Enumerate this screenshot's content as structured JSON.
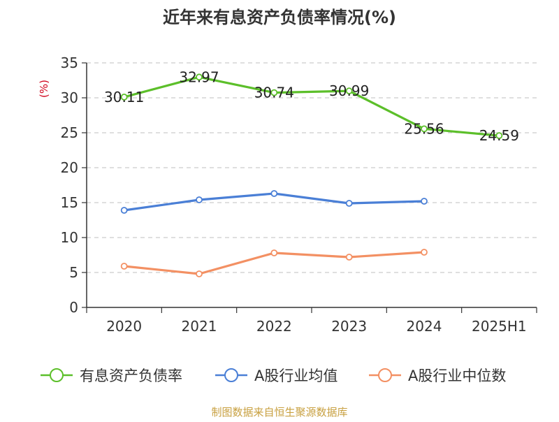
{
  "chart_data": {
    "type": "line",
    "title": "近年来有息资产负债率情况(%)",
    "ylabel": "(%)",
    "xlabel": "",
    "ylim": [
      0,
      35
    ],
    "yticks": [
      0,
      5,
      10,
      15,
      20,
      25,
      30,
      35
    ],
    "categories": [
      "2020",
      "2021",
      "2022",
      "2023",
      "2024",
      "2025H1"
    ],
    "grid": true,
    "legend_position": "bottom",
    "series": [
      {
        "name": "有息资产负债率",
        "color": "#5cbf2a",
        "values": [
          30.11,
          32.97,
          30.74,
          30.99,
          25.56,
          24.59
        ],
        "labels": [
          "30.11",
          "32.97",
          "30.74",
          "30.99",
          "25.56",
          "24.59"
        ]
      },
      {
        "name": "A股行业均值",
        "color": "#4a7fd6",
        "values": [
          13.9,
          15.4,
          16.3,
          14.9,
          15.2,
          null
        ]
      },
      {
        "name": "A股行业中位数",
        "color": "#f39063",
        "values": [
          5.9,
          4.8,
          7.8,
          7.2,
          7.9,
          null
        ]
      }
    ],
    "source": "制图数据来自恒生聚源数据库"
  }
}
